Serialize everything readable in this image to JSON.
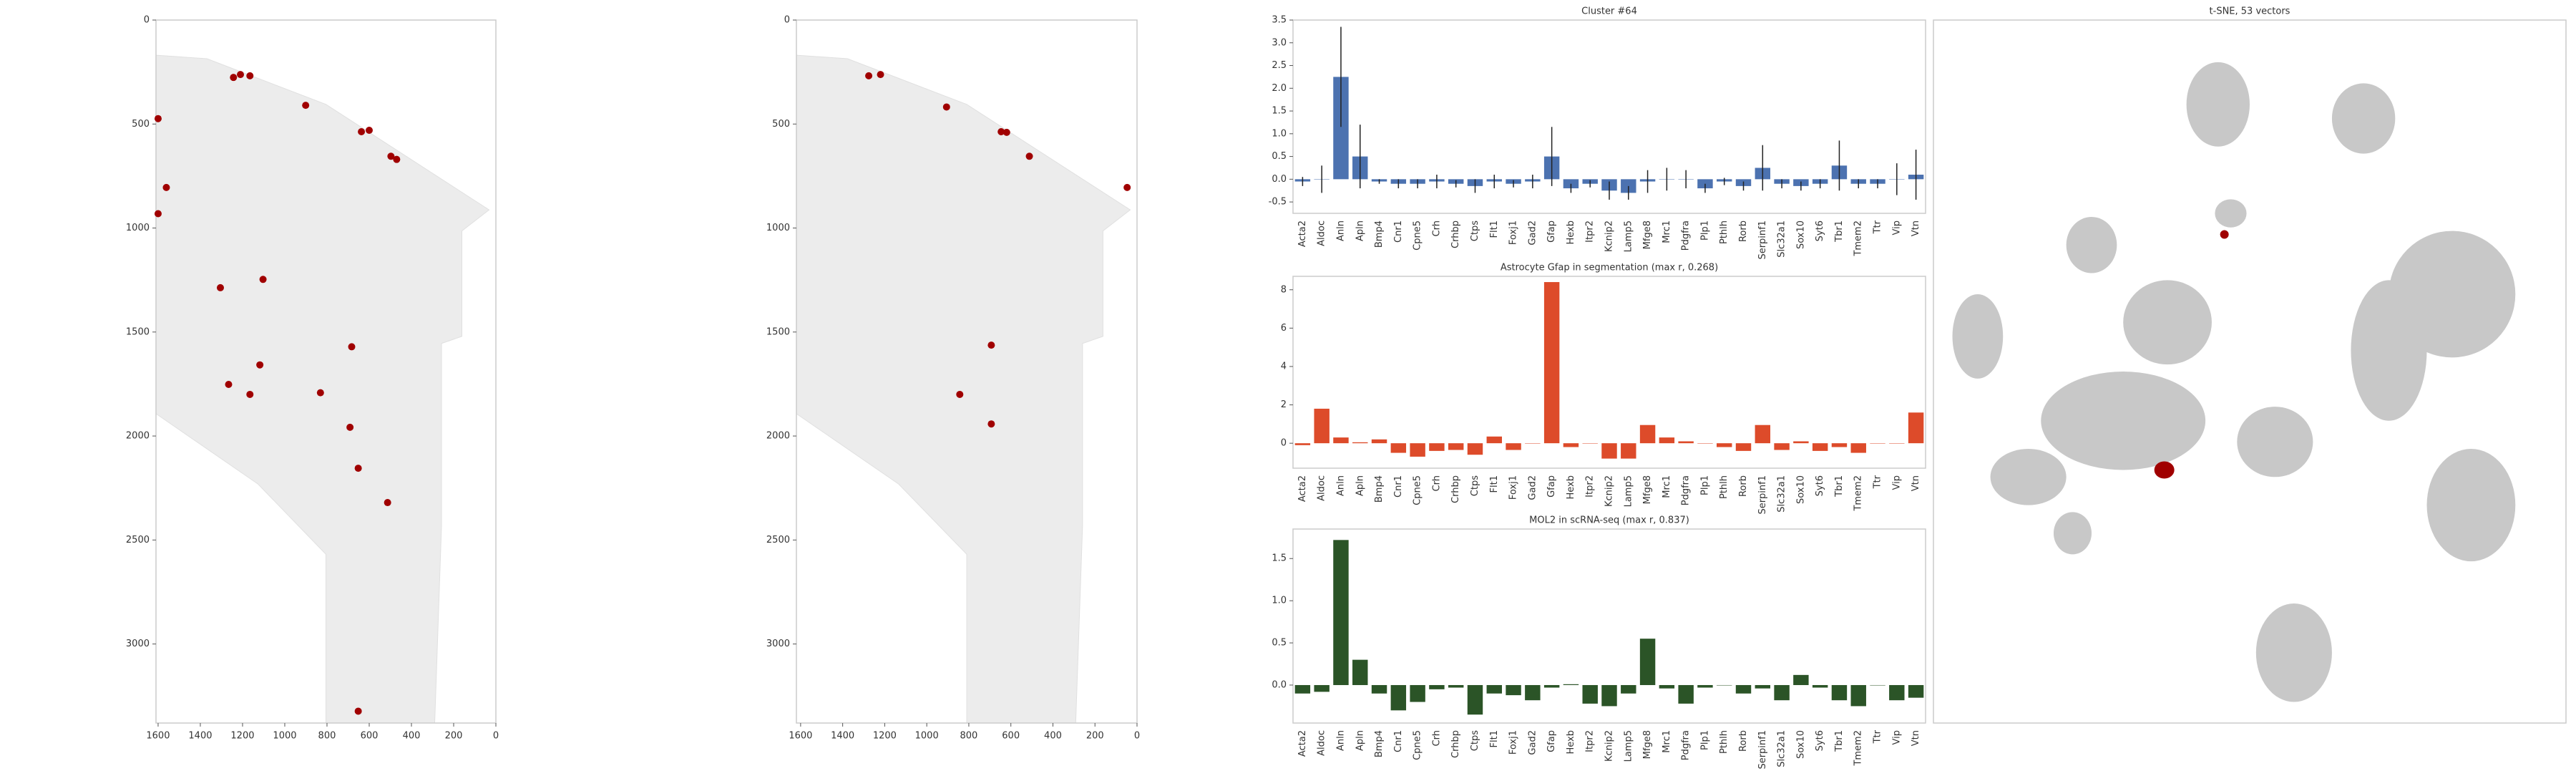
{
  "chart_data": [
    {
      "type": "scatter",
      "xlim": [
        1610,
        0
      ],
      "ylim": [
        3380,
        0
      ],
      "xticks": [
        1600,
        1400,
        1200,
        1000,
        800,
        600,
        400,
        200,
        0
      ],
      "yticks": [
        0,
        500,
        1000,
        1500,
        2000,
        2500,
        3000
      ],
      "series": [
        {
          "color": "#a00000",
          "x": [
            1243,
            1165,
            1210,
            901,
            637,
            600,
            497,
            470,
            1600,
            1561,
            1600,
            1305,
            1103,
            683,
            1118,
            1266,
            1165,
            831,
            691,
            652,
            513,
            652
          ],
          "y": [
            276,
            268,
            262,
            410,
            537,
            530,
            655,
            670,
            474,
            805,
            931,
            1287,
            1247,
            1571,
            1658,
            1752,
            1800,
            1792,
            1958,
            2155,
            2320,
            3323
          ]
        }
      ]
    },
    {
      "type": "scatter",
      "xlim": [
        1620,
        0
      ],
      "ylim": [
        3380,
        0
      ],
      "xticks": [
        1600,
        1400,
        1200,
        1000,
        800,
        600,
        400,
        200,
        0
      ],
      "yticks": [
        0,
        500,
        1000,
        1500,
        2000,
        2500,
        3000
      ],
      "series": [
        {
          "color": "#a00000",
          "x": [
            1276,
            1220,
            906,
            646,
            620,
            512,
            47,
            693,
            843,
            693
          ],
          "y": [
            268,
            262,
            418,
            537,
            540,
            655,
            805,
            1563,
            1800,
            1942
          ]
        }
      ]
    },
    {
      "type": "bar",
      "title": "Cluster #64",
      "color": "#4c72b0",
      "categories": [
        "Acta2",
        "Aldoc",
        "Anln",
        "Apln",
        "Bmp4",
        "Cnr1",
        "Cpne5",
        "Crh",
        "Crhbp",
        "Ctps",
        "Flt1",
        "Foxj1",
        "Gad2",
        "Gfap",
        "Hexb",
        "Itpr2",
        "Kcnip2",
        "Lamp5",
        "Mfge8",
        "Mrc1",
        "Pdgfra",
        "Plp1",
        "Pthlh",
        "Rorb",
        "Serpinf1",
        "Slc32a1",
        "Sox10",
        "Syt6",
        "Tbr1",
        "Tmem2",
        "Ttr",
        "Vip",
        "Vtn"
      ],
      "values": [
        -0.05,
        0.0,
        2.25,
        0.5,
        -0.05,
        -0.1,
        -0.1,
        -0.05,
        -0.1,
        -0.15,
        -0.05,
        -0.1,
        -0.05,
        0.5,
        -0.2,
        -0.1,
        -0.25,
        -0.3,
        -0.05,
        0.0,
        0.0,
        -0.2,
        -0.05,
        -0.15,
        0.25,
        -0.1,
        -0.15,
        -0.1,
        0.3,
        -0.1,
        -0.1,
        0.0,
        0.1
      ],
      "errors": [
        0.1,
        0.3,
        1.1,
        0.7,
        0.05,
        0.1,
        0.1,
        0.15,
        0.08,
        0.15,
        0.15,
        0.08,
        0.15,
        0.65,
        0.1,
        0.08,
        0.2,
        0.15,
        0.25,
        0.25,
        0.2,
        0.1,
        0.08,
        0.1,
        0.5,
        0.1,
        0.1,
        0.1,
        0.55,
        0.1,
        0.1,
        0.35,
        0.55
      ],
      "ylim": [
        -0.75,
        3.5
      ],
      "yticks": [
        -0.5,
        {
          "value": 0,
          "label": "0.0"
        },
        0.5,
        {
          "value": 1,
          "label": "1.0"
        },
        1.5,
        {
          "value": 2,
          "label": "2.0"
        },
        2.5,
        {
          "value": 3,
          "label": "3.0"
        },
        3.5
      ]
    },
    {
      "type": "bar",
      "title": "Astrocyte Gfap in segmentation (max r, 0.268)",
      "color": "#dd4b2a",
      "categories": [
        "Acta2",
        "Aldoc",
        "Anln",
        "Apln",
        "Bmp4",
        "Cnr1",
        "Cpne5",
        "Crh",
        "Crhbp",
        "Ctps",
        "Flt1",
        "Foxj1",
        "Gad2",
        "Gfap",
        "Hexb",
        "Itpr2",
        "Kcnip2",
        "Lamp5",
        "Mfge8",
        "Mrc1",
        "Pdgfra",
        "Plp1",
        "Pthlh",
        "Rorb",
        "Serpinf1",
        "Slc32a1",
        "Sox10",
        "Syt6",
        "Tbr1",
        "Tmem2",
        "Ttr",
        "Vip",
        "Vtn"
      ],
      "values": [
        -0.1,
        1.8,
        0.3,
        0.05,
        0.2,
        -0.5,
        -0.7,
        -0.4,
        -0.35,
        -0.6,
        0.35,
        -0.35,
        0.0,
        8.4,
        -0.2,
        0.0,
        -0.8,
        -0.8,
        0.95,
        0.3,
        0.1,
        0.0,
        -0.2,
        -0.4,
        0.95,
        -0.35,
        0.1,
        -0.4,
        -0.2,
        -0.5,
        0.0,
        0.0,
        1.6
      ],
      "ylim": [
        -1.3,
        8.7
      ],
      "yticks": [
        0,
        2,
        4,
        6,
        8
      ]
    },
    {
      "type": "bar",
      "title": "MOL2 in scRNA-seq (max r, 0.837)",
      "color": "#2b5427",
      "categories": [
        "Acta2",
        "Aldoc",
        "Anln",
        "Apln",
        "Bmp4",
        "Cnr1",
        "Cpne5",
        "Crh",
        "Crhbp",
        "Ctps",
        "Flt1",
        "Foxj1",
        "Gad2",
        "Gfap",
        "Hexb",
        "Itpr2",
        "Kcnip2",
        "Lamp5",
        "Mfge8",
        "Mrc1",
        "Pdgfra",
        "Plp1",
        "Pthlh",
        "Rorb",
        "Serpinf1",
        "Slc32a1",
        "Sox10",
        "Syt6",
        "Tbr1",
        "Tmem2",
        "Ttr",
        "Vip",
        "Vtn"
      ],
      "values": [
        -0.1,
        -0.08,
        1.72,
        0.3,
        -0.1,
        -0.3,
        -0.2,
        -0.05,
        -0.03,
        -0.35,
        -0.1,
        -0.12,
        -0.18,
        -0.03,
        0.01,
        -0.22,
        -0.25,
        -0.1,
        0.55,
        -0.04,
        -0.22,
        -0.03,
        0.0,
        -0.1,
        -0.04,
        -0.18,
        0.12,
        -0.03,
        -0.18,
        -0.25,
        0.0,
        -0.18,
        -0.15
      ],
      "ylim": [
        -0.45,
        1.85
      ],
      "yticks": [
        {
          "value": 0,
          "label": "0.0"
        },
        0.5,
        {
          "value": 1,
          "label": "1.0"
        },
        1.5
      ]
    },
    {
      "type": "tsne",
      "title": "t-SNE, 53 vectors"
    }
  ]
}
